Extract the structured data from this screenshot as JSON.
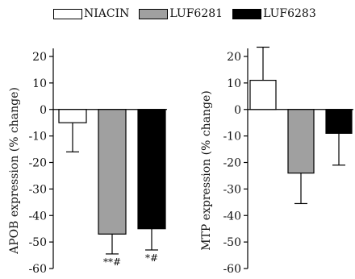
{
  "legend": [
    {
      "name": "NIACIN",
      "color": "#ffffff"
    },
    {
      "name": "LUF6281",
      "color": "#a0a0a0"
    },
    {
      "name": "LUF6283",
      "color": "#000000"
    }
  ],
  "chart_data": [
    {
      "type": "bar",
      "categories": [
        "NIACIN",
        "LUF6281",
        "LUF6283"
      ],
      "values": [
        -5,
        -47,
        -45
      ],
      "errors": [
        11,
        7.5,
        8
      ],
      "annotations": [
        "",
        "**#",
        "*#"
      ],
      "colors": [
        "#ffffff",
        "#a0a0a0",
        "#000000"
      ],
      "ylabel": "APOB expression (% change)",
      "ylim": [
        -60,
        20
      ],
      "yticks": [
        20,
        10,
        0,
        -10,
        -20,
        -30,
        -40,
        -50,
        -60
      ]
    },
    {
      "type": "bar",
      "categories": [
        "NIACIN",
        "LUF6281",
        "LUF6283"
      ],
      "values": [
        11,
        -24,
        -9
      ],
      "errors": [
        12.5,
        11.5,
        12
      ],
      "annotations": [
        "",
        "",
        ""
      ],
      "colors": [
        "#ffffff",
        "#a0a0a0",
        "#000000"
      ],
      "ylabel": "MTP expression (% change)",
      "ylim": [
        -60,
        20
      ],
      "yticks": [
        20,
        10,
        0,
        -10,
        -20,
        -30,
        -40,
        -50,
        -60
      ]
    }
  ]
}
